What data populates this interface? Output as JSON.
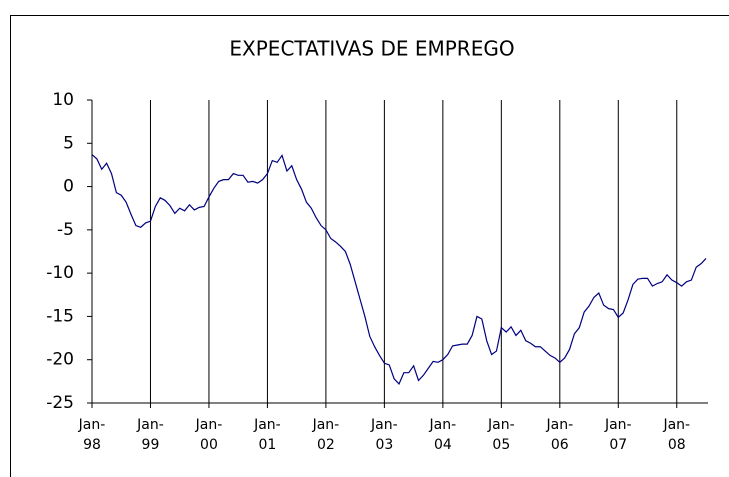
{
  "chart_data": {
    "type": "line",
    "title": "EXPECTATIVAS DE EMPREGO",
    "categories": [
      "Jan-98",
      null,
      null,
      null,
      null,
      null,
      null,
      null,
      null,
      null,
      null,
      null,
      "Jan-99",
      null,
      null,
      null,
      null,
      null,
      null,
      null,
      null,
      null,
      null,
      null,
      "Jan-00",
      null,
      null,
      null,
      null,
      null,
      null,
      null,
      null,
      null,
      null,
      null,
      "Jan-01",
      null,
      null,
      null,
      null,
      null,
      null,
      null,
      null,
      null,
      null,
      null,
      "Jan-02",
      null,
      null,
      null,
      null,
      null,
      null,
      null,
      null,
      null,
      null,
      null,
      "Jan-03",
      null,
      null,
      null,
      null,
      null,
      null,
      null,
      null,
      null,
      null,
      null,
      "Jan-04",
      null,
      null,
      null,
      null,
      null,
      null,
      null,
      null,
      null,
      null,
      null,
      "Jan-05",
      null,
      null,
      null,
      null,
      null,
      null,
      null,
      null,
      null,
      null,
      null,
      "Jan-06",
      null,
      null,
      null,
      null,
      null,
      null,
      null,
      null,
      null,
      null,
      null,
      "Jan-07",
      null,
      null,
      null,
      null,
      null,
      null,
      null,
      null,
      null,
      null,
      null,
      "Jan-08",
      null,
      null,
      null,
      null,
      null,
      null
    ],
    "values": [
      3.7,
      3.2,
      2.0,
      2.7,
      1.5,
      -0.7,
      -1.0,
      -1.8,
      -3.2,
      -4.5,
      -4.7,
      -4.2,
      -4.0,
      -2.3,
      -1.3,
      -1.6,
      -2.2,
      -3.1,
      -2.5,
      -2.8,
      -2.1,
      -2.7,
      -2.4,
      -2.3,
      -1.2,
      -0.2,
      0.6,
      0.8,
      0.8,
      1.5,
      1.3,
      1.3,
      0.5,
      0.6,
      0.4,
      0.8,
      1.5,
      3.0,
      2.8,
      3.6,
      1.8,
      2.4,
      0.8,
      -0.3,
      -1.8,
      -2.5,
      -3.6,
      -4.5,
      -5.0,
      -6.0,
      -6.4,
      -6.9,
      -7.5,
      -9.0,
      -11.0,
      -13.0,
      -15.0,
      -17.3,
      -18.5,
      -19.5,
      -20.4,
      -20.6,
      -22.2,
      -22.8,
      -21.5,
      -21.5,
      -20.7,
      -22.4,
      -21.8,
      -21.0,
      -20.2,
      -20.3,
      -20.0,
      -19.4,
      -18.4,
      -18.3,
      -18.2,
      -18.2,
      -17.2,
      -15.0,
      -15.3,
      -17.8,
      -19.4,
      -19.0,
      -16.3,
      -16.8,
      -16.2,
      -17.2,
      -16.6,
      -17.8,
      -18.1,
      -18.5,
      -18.5,
      -19.0,
      -19.5,
      -19.8,
      -20.3,
      -19.8,
      -18.8,
      -17.0,
      -16.3,
      -14.5,
      -13.8,
      -12.8,
      -12.3,
      -13.7,
      -14.1,
      -14.2,
      -15.1,
      -14.6,
      -13.1,
      -11.3,
      -10.7,
      -10.6,
      -10.6,
      -11.5,
      -11.2,
      -11.0,
      -10.2,
      -10.8,
      -11.1,
      -11.5,
      -11.0,
      -10.8,
      -9.3,
      -8.9,
      -8.3
    ],
    "color": "#000080",
    "ylim": [
      -25,
      10
    ],
    "yticks": [
      -25,
      -20,
      -15,
      -10,
      -5,
      0,
      5,
      10
    ],
    "grid": true
  }
}
